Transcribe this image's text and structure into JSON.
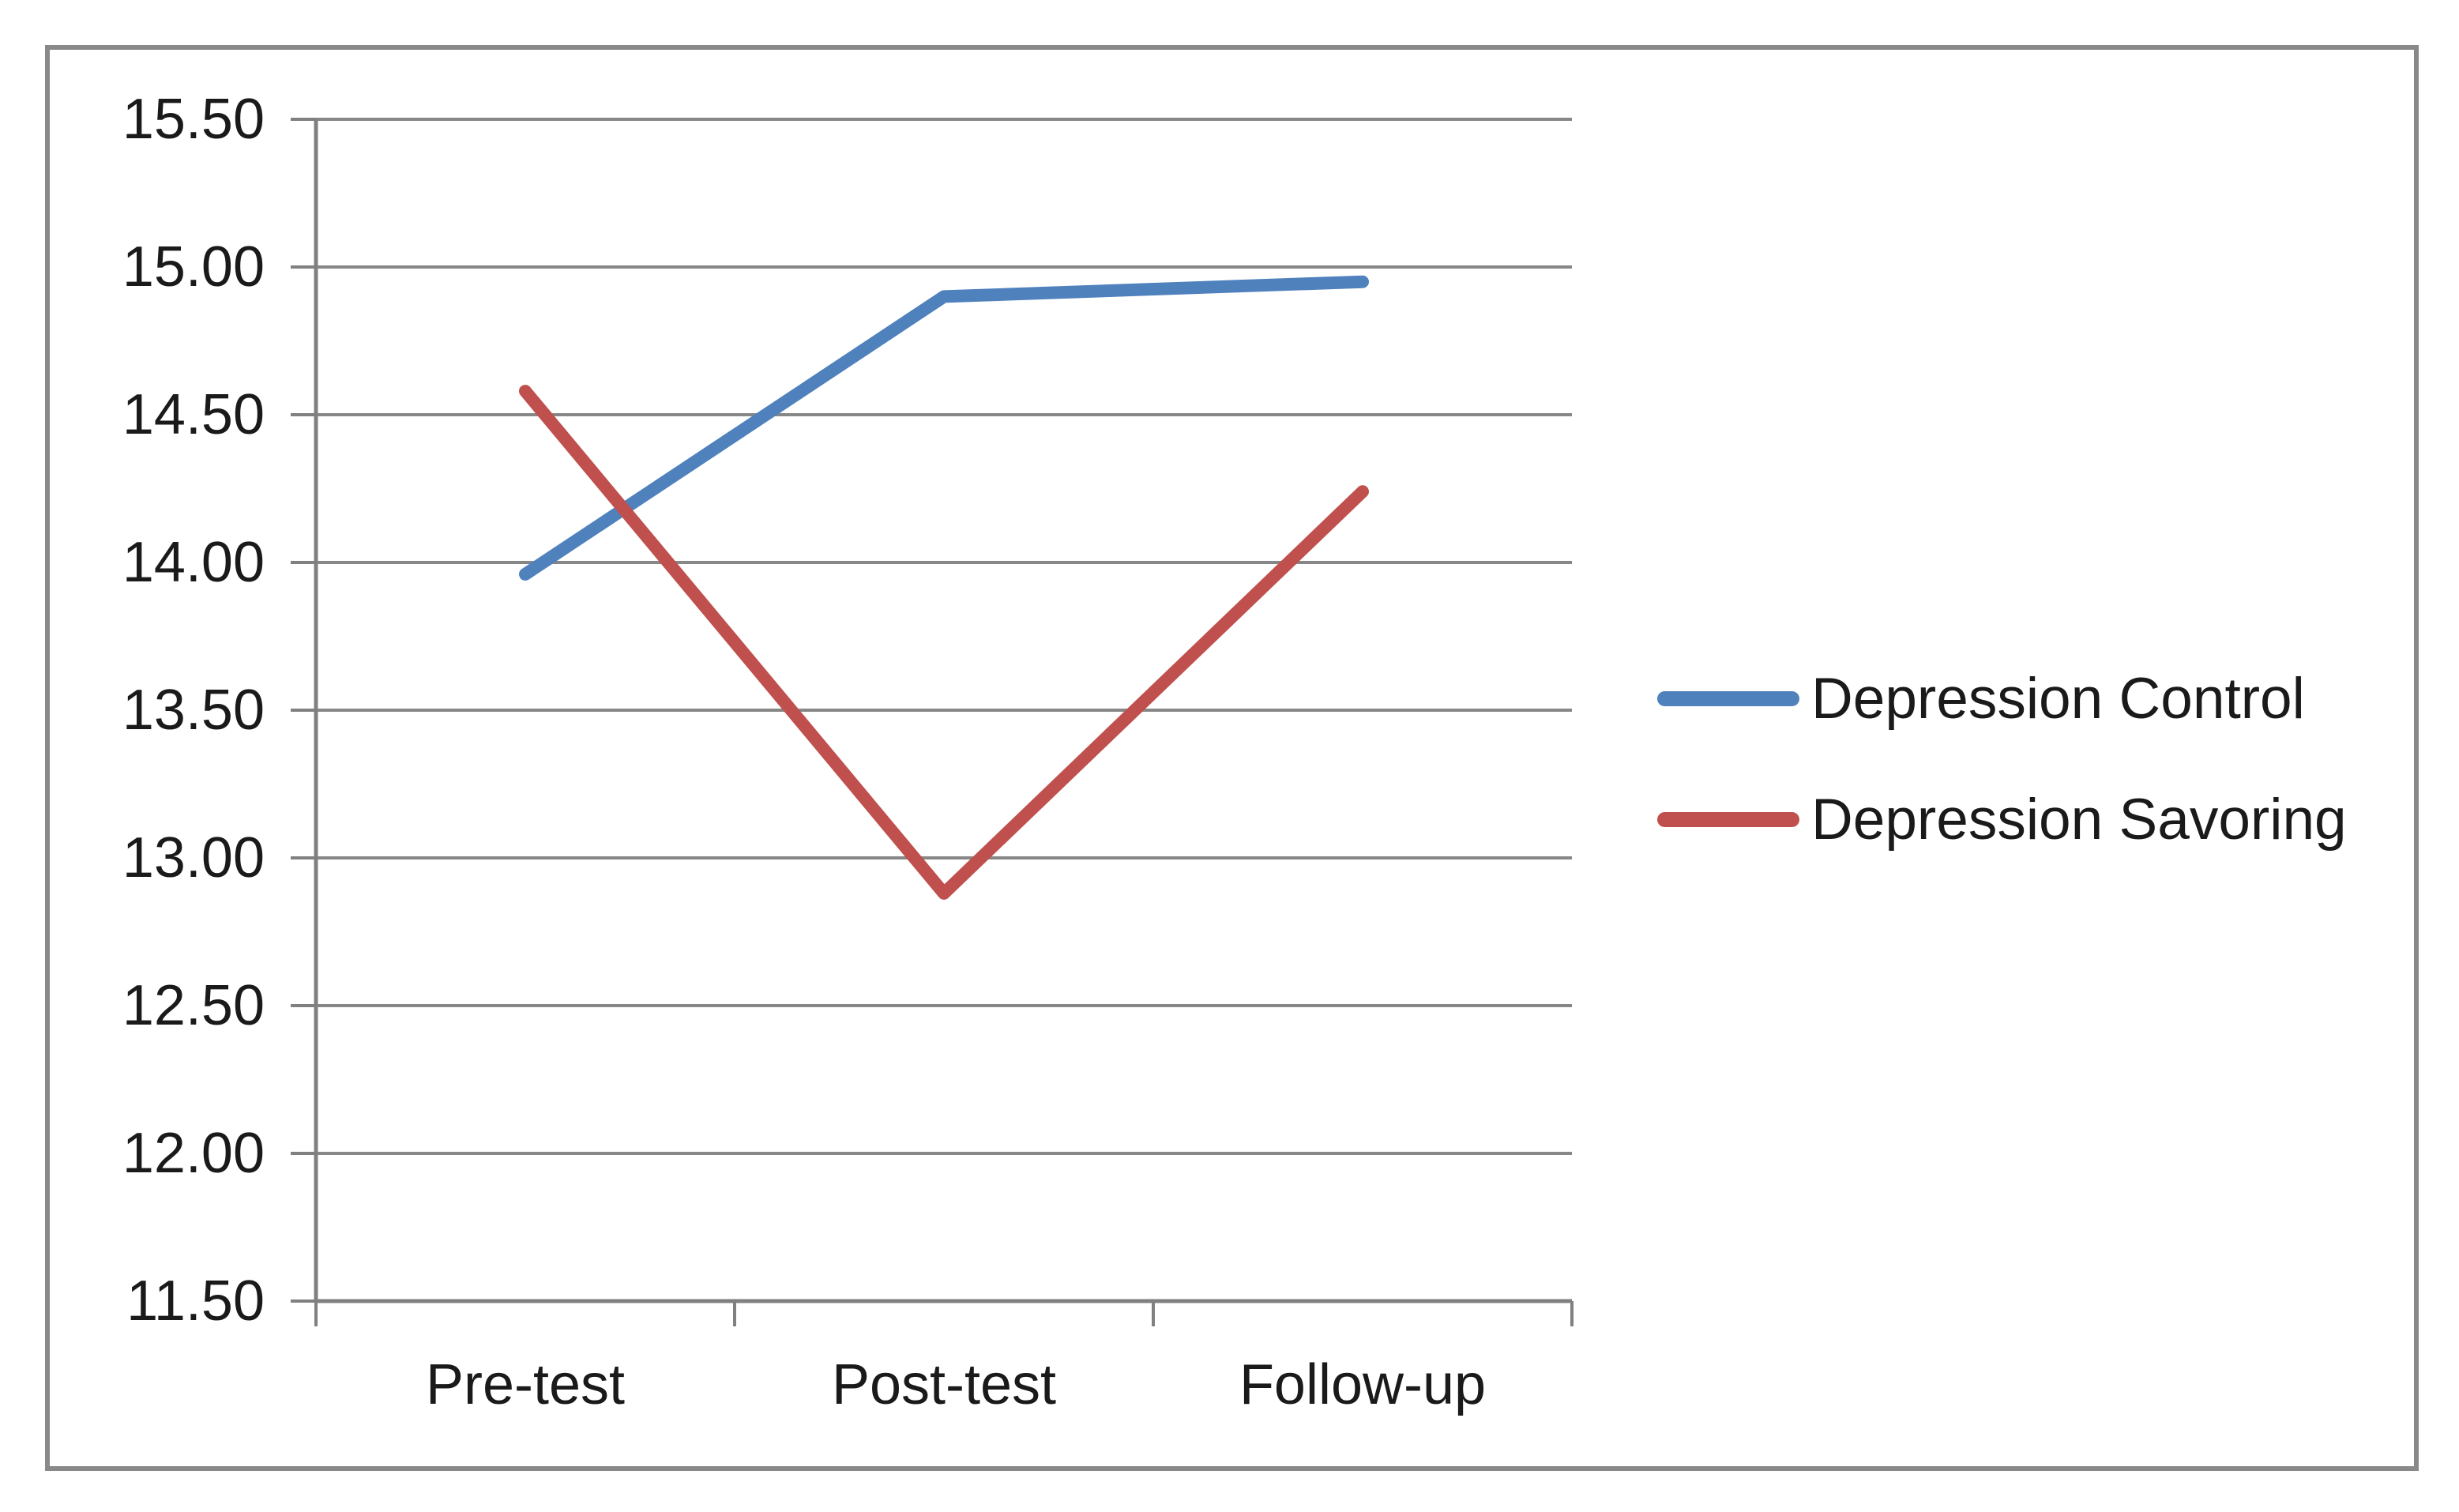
{
  "chart_data": {
    "type": "line",
    "title": "",
    "xlabel": "",
    "ylabel": "",
    "categories": [
      "Pre-test",
      "Post-test",
      "Follow-up"
    ],
    "series": [
      {
        "name": "Depression Control",
        "color": "#4F81BD",
        "values": [
          13.96,
          14.9,
          14.95
        ]
      },
      {
        "name": "Depression Savoring",
        "color": "#C0504D",
        "values": [
          14.58,
          12.88,
          14.24
        ]
      }
    ],
    "ylim": [
      11.5,
      15.5
    ],
    "ytick_step": 0.5,
    "ytick_decimals": 2,
    "grid": true,
    "legend_position": "right",
    "colors": {
      "grid": "#878787",
      "axis": "#808080",
      "frame_border": "#898989",
      "text": "#1a1a1a",
      "background": "#ffffff"
    }
  }
}
